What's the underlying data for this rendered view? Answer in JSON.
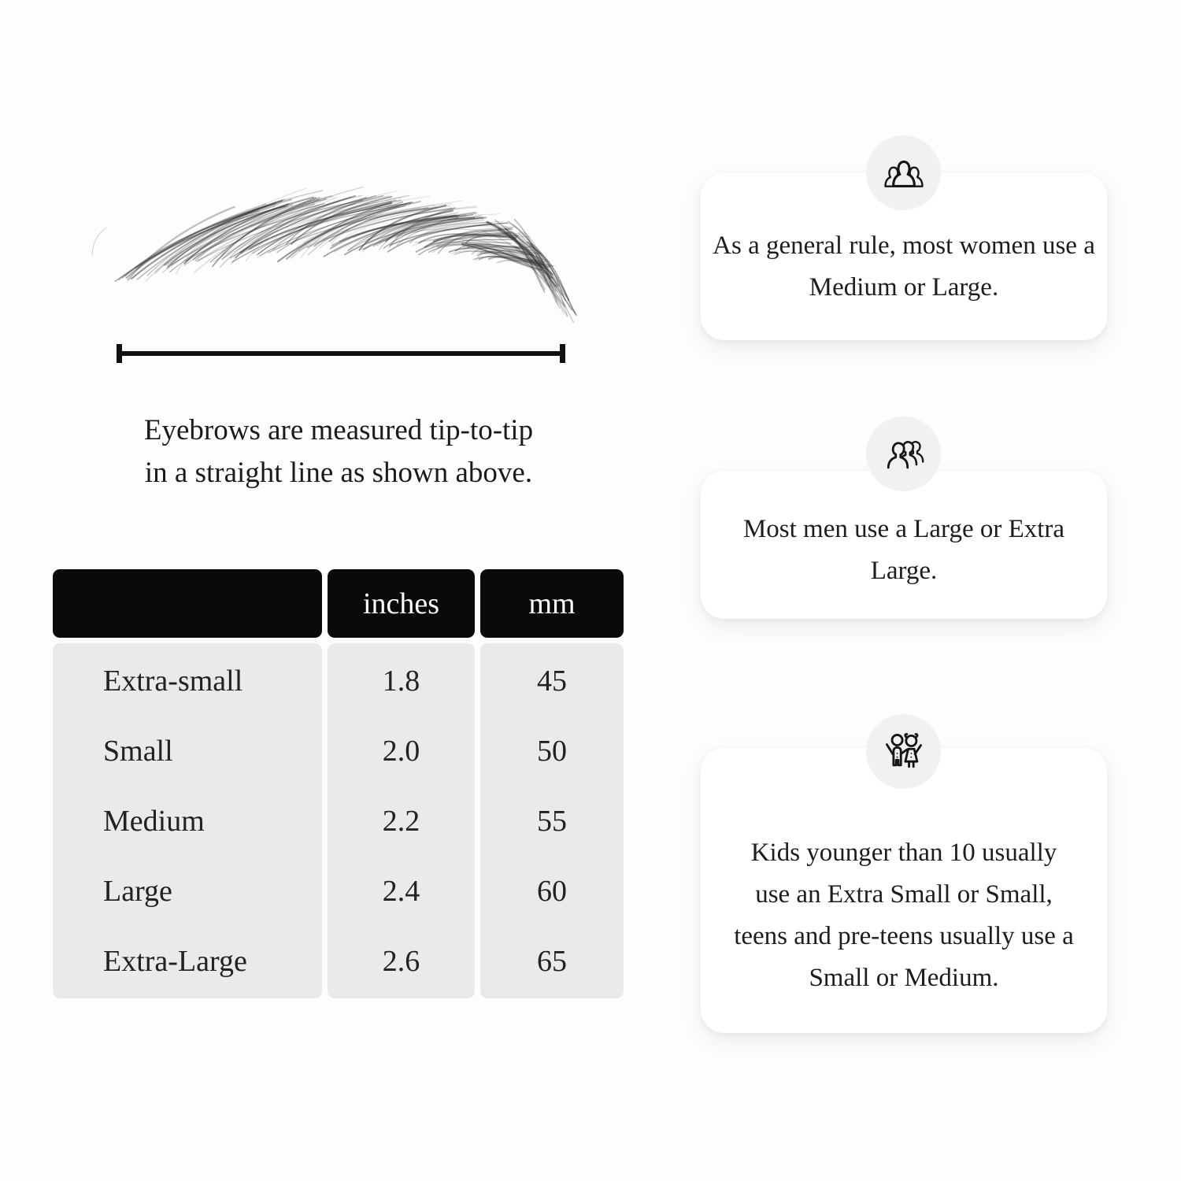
{
  "measurement_diagram": {
    "caption_line1": "Eyebrows are measured tip-to-tip",
    "caption_line2": "in a straight line as shown above."
  },
  "size_table": {
    "headers": {
      "name": "",
      "inches": "inches",
      "mm": "mm"
    },
    "rows": [
      {
        "name": "Extra-small",
        "inches": "1.8",
        "mm": "45"
      },
      {
        "name": "Small",
        "inches": "2.0",
        "mm": "50"
      },
      {
        "name": "Medium",
        "inches": "2.2",
        "mm": "55"
      },
      {
        "name": "Large",
        "inches": "2.4",
        "mm": "60"
      },
      {
        "name": "Extra-Large",
        "inches": "2.6",
        "mm": "65"
      }
    ]
  },
  "info_cards": [
    {
      "icon": "women-group-icon",
      "text": "As a general rule, most women use a Medium or Large."
    },
    {
      "icon": "men-group-icon",
      "text": "Most men use a Large or Extra Large."
    },
    {
      "icon": "children-icon",
      "text": "Kids younger than 10 usually use an Extra Small or Small, teens and pre-teens usually use a Small or Medium."
    }
  ],
  "colors": {
    "page_bg": "#fdfdfd",
    "card_bg": "#ffffff",
    "icon_circle_bg": "#f1f1f1",
    "table_header_bg": "#0a0a0a",
    "table_header_text": "#ffffff",
    "table_body_bg": "#eaeaea",
    "text": "#1c1c1c",
    "line": "#111111"
  }
}
